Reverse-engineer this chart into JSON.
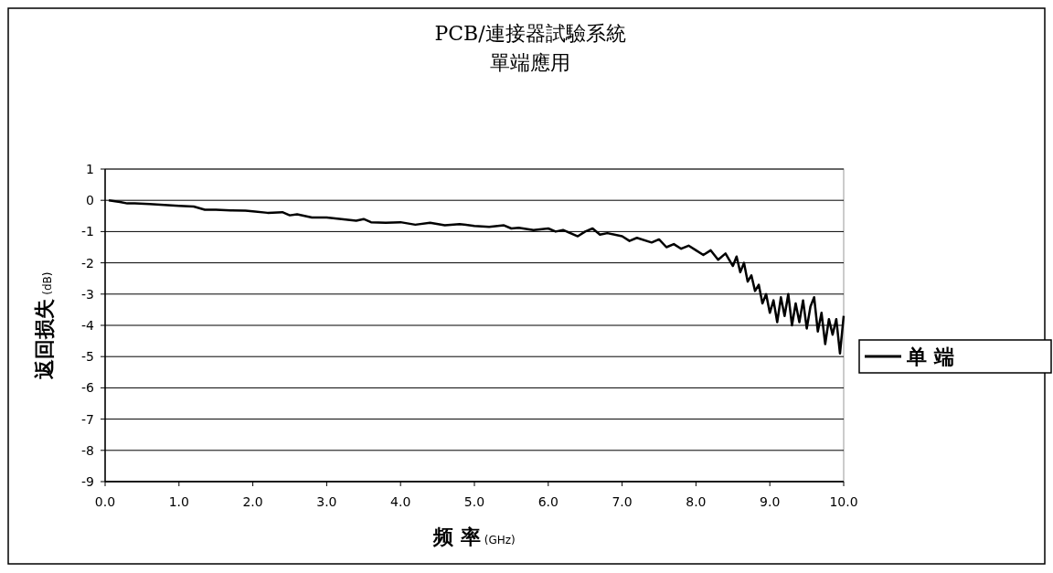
{
  "chart_data": {
    "type": "line",
    "title": "PCB/連接器試驗系統",
    "subtitle": "單端應用",
    "xlabel": "频 率 (GHz)",
    "ylabel": "返回损失 (dB)",
    "xlim": [
      0,
      10
    ],
    "xticks": [
      {
        "value": 0,
        "label": "0.0"
      },
      {
        "value": 1,
        "label": "1.0"
      },
      {
        "value": 2,
        "label": "2.0"
      },
      {
        "value": 3,
        "label": "3.0"
      },
      {
        "value": 4,
        "label": "4.0"
      },
      {
        "value": 5,
        "label": "5.0"
      },
      {
        "value": 6,
        "label": "6.0"
      },
      {
        "value": 7,
        "label": "7.0"
      },
      {
        "value": 8,
        "label": "8.0"
      },
      {
        "value": 9,
        "label": "9.0"
      },
      {
        "value": 10,
        "label": "10.0"
      }
    ],
    "ylim": [
      -9,
      1
    ],
    "yticks": [
      -9,
      -8,
      -7,
      -6,
      -5,
      -4,
      -3,
      -2,
      -1,
      0,
      1
    ],
    "grid": "y",
    "legend": "right",
    "marker": "none",
    "line_style": "solid",
    "series": [
      {
        "name": "单 端",
        "color": "#000000",
        "x": [
          0.05,
          0.2,
          0.3,
          0.4,
          0.6,
          0.8,
          1.0,
          1.2,
          1.35,
          1.5,
          1.7,
          1.9,
          2.0,
          2.2,
          2.4,
          2.5,
          2.6,
          2.8,
          3.0,
          3.2,
          3.4,
          3.5,
          3.6,
          3.8,
          4.0,
          4.2,
          4.4,
          4.6,
          4.8,
          5.0,
          5.2,
          5.4,
          5.5,
          5.6,
          5.8,
          6.0,
          6.1,
          6.2,
          6.4,
          6.5,
          6.6,
          6.7,
          6.8,
          7.0,
          7.1,
          7.2,
          7.4,
          7.5,
          7.6,
          7.7,
          7.8,
          7.9,
          8.0,
          8.1,
          8.2,
          8.3,
          8.4,
          8.5,
          8.55,
          8.6,
          8.65,
          8.7,
          8.75,
          8.8,
          8.85,
          8.9,
          8.95,
          9.0,
          9.05,
          9.1,
          9.15,
          9.2,
          9.25,
          9.3,
          9.35,
          9.4,
          9.45,
          9.5,
          9.55,
          9.6,
          9.65,
          9.7,
          9.75,
          9.8,
          9.85,
          9.9,
          9.95,
          10.0
        ],
        "values": [
          0.0,
          -0.05,
          -0.1,
          -0.1,
          -0.12,
          -0.15,
          -0.18,
          -0.2,
          -0.3,
          -0.3,
          -0.32,
          -0.33,
          -0.35,
          -0.4,
          -0.38,
          -0.48,
          -0.45,
          -0.55,
          -0.55,
          -0.6,
          -0.65,
          -0.6,
          -0.7,
          -0.72,
          -0.7,
          -0.78,
          -0.72,
          -0.8,
          -0.76,
          -0.82,
          -0.85,
          -0.8,
          -0.9,
          -0.88,
          -0.95,
          -0.9,
          -1.0,
          -0.95,
          -1.15,
          -1.0,
          -0.9,
          -1.1,
          -1.05,
          -1.15,
          -1.3,
          -1.2,
          -1.35,
          -1.25,
          -1.5,
          -1.4,
          -1.55,
          -1.45,
          -1.6,
          -1.75,
          -1.6,
          -1.9,
          -1.7,
          -2.1,
          -1.8,
          -2.3,
          -2.0,
          -2.6,
          -2.4,
          -2.9,
          -2.7,
          -3.3,
          -3.0,
          -3.6,
          -3.2,
          -3.9,
          -3.1,
          -3.7,
          -3.0,
          -4.0,
          -3.3,
          -3.9,
          -3.2,
          -4.1,
          -3.4,
          -3.1,
          -4.2,
          -3.6,
          -4.6,
          -3.8,
          -4.3,
          -3.8,
          -4.9,
          -3.7
        ]
      }
    ]
  }
}
